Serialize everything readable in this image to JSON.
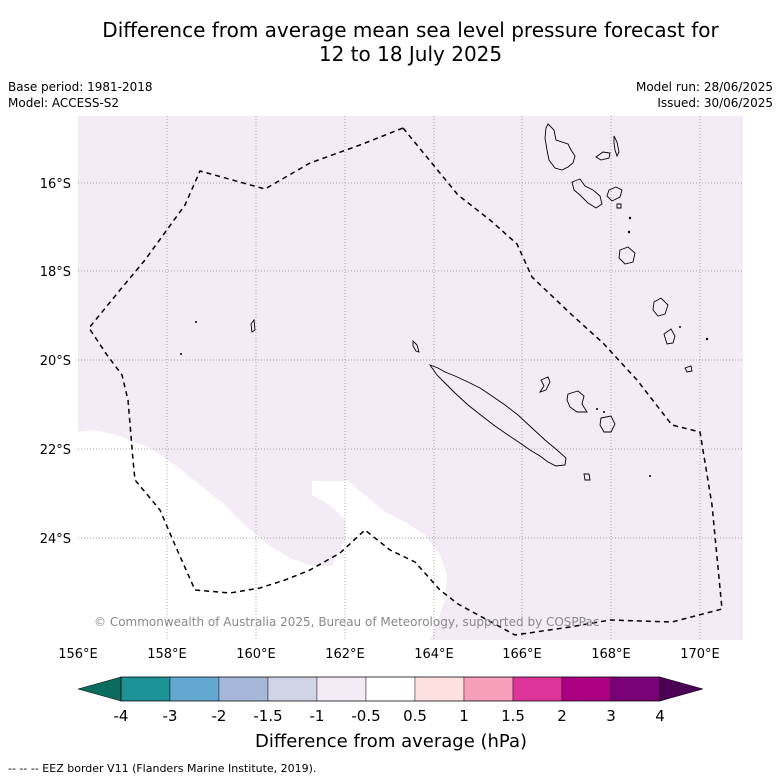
{
  "title_line1": "Difference from average mean sea level pressure forecast for",
  "title_line2": "12 to 18 July 2025",
  "meta_left": {
    "base_period": "Base period: 1981-2018",
    "model": "Model: ACCESS-S2"
  },
  "meta_right": {
    "model_run": "Model run: 28/06/2025",
    "issued": "Issued: 30/06/2025"
  },
  "copyright": "© Commonwealth of Australia 2025, Bureau of Meteorology, supported by COSPPac",
  "lon_labels": [
    "156°E",
    "158°E",
    "160°E",
    "162°E",
    "164°E",
    "166°E",
    "168°E",
    "170°E"
  ],
  "lat_labels": [
    "16°S",
    "18°S",
    "20°S",
    "22°S",
    "24°S"
  ],
  "colorbar": {
    "title": "Difference from average (hPa)",
    "tick_labels": [
      "-4",
      "-3",
      "-2",
      "-1.5",
      "-1",
      "-0.5",
      "0.5",
      "1",
      "1.5",
      "2",
      "3",
      "4"
    ],
    "under_color": "#0b6b5e",
    "over_color": "#4b0055",
    "colors": [
      "#1a9296",
      "#62a8d0",
      "#a6b8da",
      "#d1d3e6",
      "#f3ecf6",
      "#ffffff",
      "#fde0e0",
      "#f79fba",
      "#dd349a",
      "#aa0081",
      "#7a0077"
    ]
  },
  "map_colors": {
    "background_fill": "#f3ecf6",
    "neutral_fill": "#ffffff",
    "coast": "#000000",
    "eez": "#000000",
    "grid": "#888888"
  },
  "footnote": "--  --  -- EEZ border V11 (Flanders Marine Institute, 2019)."
}
